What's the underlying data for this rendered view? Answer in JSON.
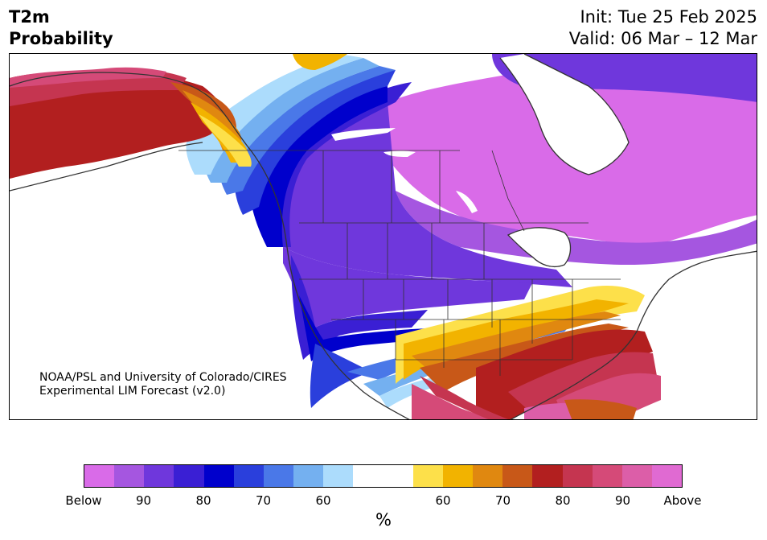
{
  "header": {
    "title_line1": "T2m",
    "title_line2": "Probability",
    "init": "Init: Tue 25 Feb 2025",
    "valid": "Valid: 06 Mar – 12 Mar"
  },
  "credit": {
    "line1": "NOAA/PSL and University of Colorado/CIRES",
    "line2": "Experimental LIM Forecast (v2.0)"
  },
  "colorbar": {
    "colors": [
      "#d96be8",
      "#a556e0",
      "#6f37dc",
      "#3a1fd4",
      "#0000cc",
      "#2a3fdc",
      "#4a78e8",
      "#74b0f0",
      "#acdcfc",
      "#ffffff",
      "#ffffff",
      "#fde04a",
      "#f2b300",
      "#e08810",
      "#c85818",
      "#b21f1f",
      "#c53550",
      "#d54a78",
      "#dc5ea8",
      "#e06ad2"
    ],
    "labels": [
      "Below",
      "90",
      "80",
      "70",
      "60",
      "60",
      "70",
      "80",
      "90",
      "Above"
    ],
    "unit": "%"
  },
  "map": {
    "regions": [
      {
        "name": "alaska",
        "category": "above-80"
      },
      {
        "name": "western-canada-coast",
        "category": "above-60"
      },
      {
        "name": "central-canada",
        "category": "below-80"
      },
      {
        "name": "eastern-canada",
        "category": "below-90"
      },
      {
        "name": "western-us",
        "category": "below-80"
      },
      {
        "name": "south-central-us",
        "category": "above-70"
      },
      {
        "name": "southeast-us",
        "category": "above-80"
      },
      {
        "name": "mexico",
        "category": "above-80"
      }
    ]
  }
}
